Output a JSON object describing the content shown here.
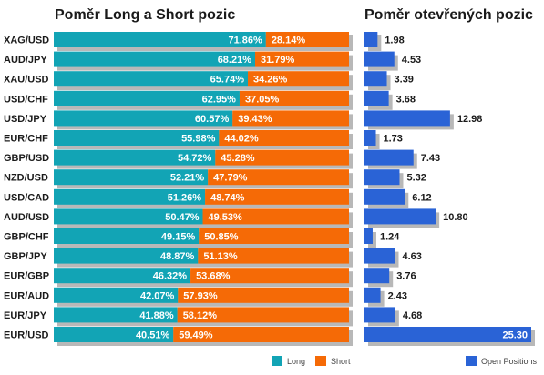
{
  "colors": {
    "long": "#12a4b5",
    "short": "#f56a06",
    "open": "#2a63d6",
    "shadow": "#b8b8b8"
  },
  "chart_data": [
    {
      "type": "bar",
      "orientation": "horizontal",
      "stacked": true,
      "title": "Poměr Long a Short pozic",
      "categories": [
        "XAG/USD",
        "AUD/JPY",
        "XAU/USD",
        "USD/CHF",
        "USD/JPY",
        "EUR/CHF",
        "GBP/USD",
        "NZD/USD",
        "USD/CAD",
        "AUD/USD",
        "GBP/CHF",
        "GBP/JPY",
        "EUR/GBP",
        "EUR/AUD",
        "EUR/JPY",
        "EUR/USD"
      ],
      "series": [
        {
          "name": "Long",
          "values": [
            71.86,
            68.21,
            65.74,
            62.95,
            60.57,
            55.98,
            54.72,
            52.21,
            51.26,
            50.47,
            49.15,
            48.87,
            46.32,
            42.07,
            41.88,
            40.51
          ],
          "labels": [
            "71.86%",
            "68.21%",
            "65.74%",
            "62.95%",
            "60.57%",
            "55.98%",
            "54.72%",
            "52.21%",
            "51.26%",
            "50.47%",
            "49.15%",
            "48.87%",
            "46.32%",
            "42.07%",
            "41.88%",
            "40.51%"
          ]
        },
        {
          "name": "Short",
          "values": [
            28.14,
            31.79,
            34.26,
            37.05,
            39.43,
            44.02,
            45.28,
            47.79,
            48.74,
            49.53,
            50.85,
            51.13,
            53.68,
            57.93,
            58.12,
            59.49
          ],
          "labels": [
            "28.14%",
            "31.79%",
            "34.26%",
            "37.05%",
            "39.43%",
            "44.02%",
            "45.28%",
            "47.79%",
            "48.74%",
            "49.53%",
            "50.85%",
            "51.13%",
            "53.68%",
            "57.93%",
            "58.12%",
            "59.49%"
          ]
        }
      ],
      "legend": "bottom-right",
      "grid": false
    },
    {
      "type": "bar",
      "orientation": "horizontal",
      "title": "Poměr otevřených pozic",
      "categories": [
        "XAG/USD",
        "AUD/JPY",
        "XAU/USD",
        "USD/CHF",
        "USD/JPY",
        "EUR/CHF",
        "GBP/USD",
        "NZD/USD",
        "USD/CAD",
        "AUD/USD",
        "GBP/CHF",
        "GBP/JPY",
        "EUR/GBP",
        "EUR/AUD",
        "EUR/JPY",
        "EUR/USD"
      ],
      "series": [
        {
          "name": "Open Positions",
          "values": [
            1.98,
            4.53,
            3.39,
            3.68,
            12.98,
            1.73,
            7.43,
            5.32,
            6.12,
            10.8,
            1.24,
            4.63,
            3.76,
            2.43,
            4.68,
            25.3
          ],
          "labels": [
            "1.98",
            "4.53",
            "3.39",
            "3.68",
            "12.98",
            "1.73",
            "7.43",
            "5.32",
            "6.12",
            "10.80",
            "1.24",
            "4.63",
            "3.76",
            "2.43",
            "4.68",
            "25.30"
          ]
        }
      ],
      "legend": "bottom-right",
      "grid": false
    }
  ]
}
